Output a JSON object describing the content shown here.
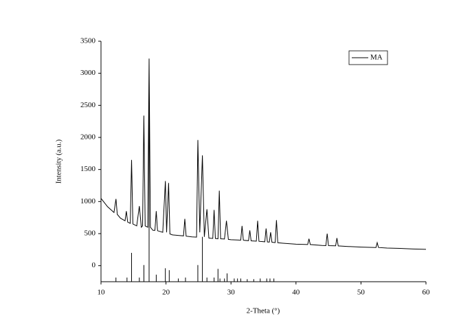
{
  "chart_data": {
    "type": "line",
    "x_label": "2-Theta (°)",
    "y_label": "Intensity (a.u.)",
    "xlim": [
      10,
      60
    ],
    "xticks": [
      10,
      20,
      30,
      40,
      50,
      60
    ],
    "ylim": [
      -250,
      3500
    ],
    "yticks": [
      0,
      500,
      1000,
      1500,
      2000,
      2500,
      3000,
      3500
    ],
    "legend": "upper-right",
    "series": [
      {
        "name": "MA",
        "color": "#000000",
        "x": [
          10,
          11,
          12,
          12.3,
          12.5,
          13,
          13.7,
          13.9,
          14.1,
          14.5,
          14.7,
          14.9,
          15.5,
          15.9,
          16.2,
          16.4,
          16.6,
          16.8,
          17.2,
          17.4,
          17.6,
          18,
          18.3,
          18.5,
          18.7,
          19.5,
          19.9,
          20.1,
          20.4,
          20.6,
          21,
          22,
          22.7,
          22.9,
          23.1,
          24,
          24.7,
          24.9,
          25.2,
          25.6,
          25.9,
          26.3,
          26.6,
          27.2,
          27.4,
          27.6,
          28,
          28.2,
          28.4,
          29,
          29.3,
          29.6,
          30,
          31.5,
          31.7,
          31.9,
          32,
          32.7,
          32.9,
          33.1,
          33.9,
          34.1,
          34.3,
          35.2,
          35.4,
          35.6,
          35.9,
          36.1,
          36.3,
          36.8,
          37,
          37.2,
          38,
          40,
          41.8,
          42,
          42.2,
          44,
          44.6,
          44.8,
          45,
          46.1,
          46.3,
          46.5,
          48,
          50,
          52.3,
          52.5,
          52.7,
          54,
          56,
          58,
          60
        ],
        "values": [
          1050,
          920,
          830,
          1040,
          800,
          740,
          700,
          850,
          680,
          660,
          1650,
          650,
          620,
          930,
          600,
          620,
          2340,
          620,
          600,
          3220,
          600,
          550,
          550,
          850,
          545,
          520,
          1320,
          520,
          1290,
          495,
          480,
          470,
          465,
          730,
          460,
          450,
          445,
          1960,
          520,
          1720,
          450,
          880,
          430,
          425,
          870,
          425,
          420,
          1170,
          420,
          415,
          700,
          410,
          405,
          398,
          620,
          398,
          395,
          390,
          550,
          388,
          382,
          700,
          380,
          372,
          580,
          370,
          368,
          520,
          366,
          360,
          710,
          358,
          350,
          335,
          330,
          420,
          330,
          315,
          313,
          500,
          312,
          310,
          430,
          308,
          300,
          290,
          284,
          360,
          284,
          275,
          270,
          260,
          255
        ]
      }
    ],
    "reference": {
      "color": "#000000",
      "x": [
        12.3,
        14,
        14.7,
        15.9,
        16.6,
        17.4,
        18.5,
        19.9,
        20.5,
        21.9,
        23,
        24.9,
        25.6,
        26.3,
        27.4,
        28,
        28.3,
        29,
        29.4,
        30.5,
        31,
        31.5,
        32.5,
        33.5,
        34.5,
        35.5,
        36,
        36.6
      ],
      "values": [
        -185,
        -185,
        200,
        -185,
        10,
        3230,
        -140,
        -40,
        -70,
        -200,
        -185,
        10,
        450,
        -185,
        -185,
        -50,
        -200,
        -200,
        -120,
        -200,
        -200,
        -200,
        -210,
        -210,
        -200,
        -200,
        -200,
        -200
      ]
    }
  }
}
